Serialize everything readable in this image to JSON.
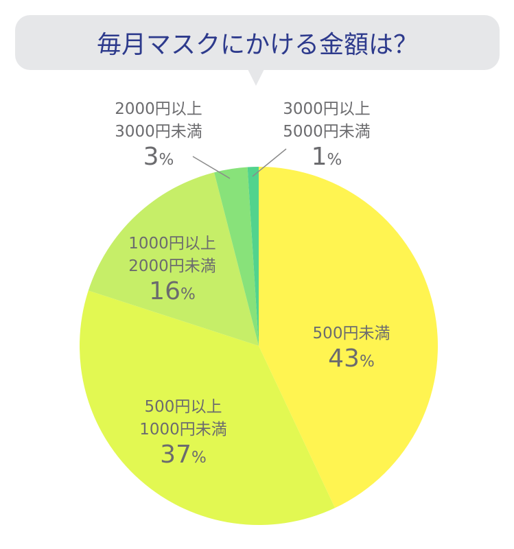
{
  "title": "毎月マスクにかける金額は？",
  "chart_data": {
    "type": "pie",
    "title": "毎月マスクにかける金額は？",
    "start": "top",
    "direction": "clockwise",
    "slices": [
      {
        "label_lines": [
          "500円未満"
        ],
        "value": 43,
        "number": "43",
        "unit": "%",
        "color": "#fff451"
      },
      {
        "label_lines": [
          "500円以上",
          "1000円未満"
        ],
        "value": 37,
        "number": "37",
        "unit": "%",
        "color": "#e2f852"
      },
      {
        "label_lines": [
          "1000円以上",
          "2000円未満"
        ],
        "value": 16,
        "number": "16",
        "unit": "%",
        "color": "#c6ee68"
      },
      {
        "label_lines": [
          "2000円以上",
          "3000円未満"
        ],
        "value": 3,
        "number": "3",
        "unit": "%",
        "color": "#88e27a"
      },
      {
        "label_lines": [
          "3000円以上",
          "5000円未満"
        ],
        "value": 1,
        "number": "1",
        "unit": "%",
        "color": "#52d38d"
      }
    ]
  },
  "colors": {
    "title_text": "#2d3a8c",
    "bubble_bg": "#e6e7e9",
    "label_text": "#6b6b6e",
    "leader_line": "#8a8a8a"
  }
}
